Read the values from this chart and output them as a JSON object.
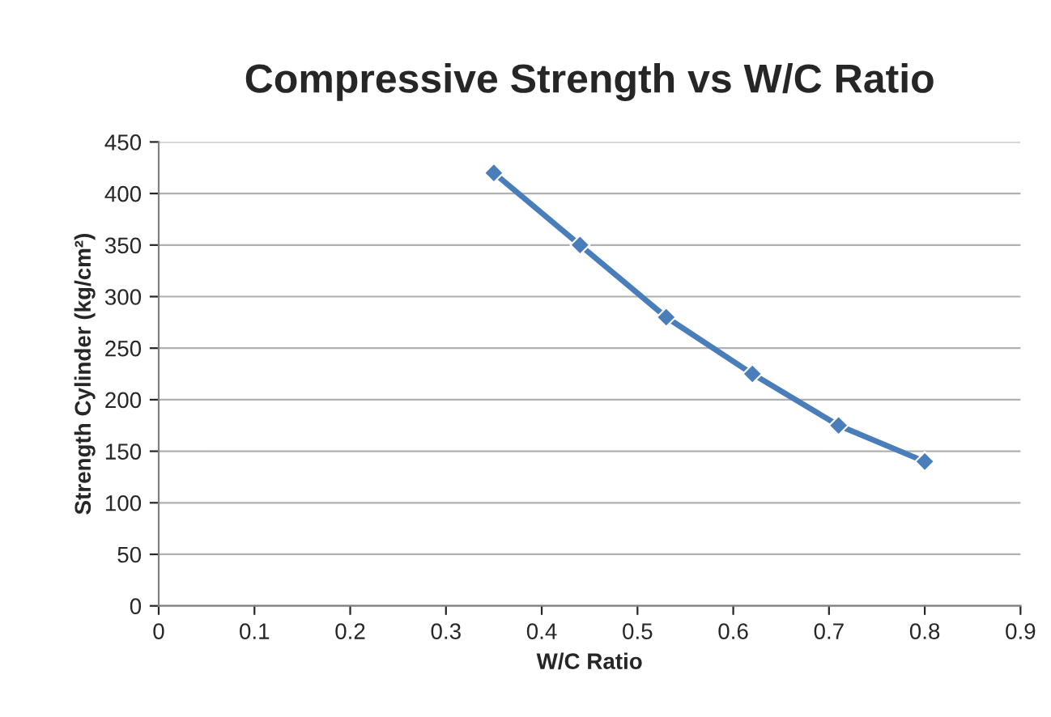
{
  "chart_data": {
    "type": "line",
    "title": "Compressive Strength vs W/C Ratio",
    "xlabel": "W/C Ratio",
    "ylabel": "Strength Cylinder (kg/cm²)",
    "x": [
      0.35,
      0.44,
      0.53,
      0.62,
      0.71,
      0.8
    ],
    "series": [
      {
        "color": "#4a7ebb",
        "values": [
          420,
          350,
          280,
          225,
          175,
          140
        ]
      }
    ],
    "xlim": [
      0,
      0.9
    ],
    "xticks": [
      0,
      0.1,
      0.2,
      0.3,
      0.4,
      0.5,
      0.6,
      0.7,
      0.8,
      0.9
    ],
    "ylim": [
      0,
      450
    ],
    "yticks": [
      0,
      50,
      100,
      150,
      200,
      250,
      300,
      350,
      400,
      450
    ],
    "grid": "y",
    "marker": "diamond",
    "line_style": "solid",
    "legend": false
  }
}
